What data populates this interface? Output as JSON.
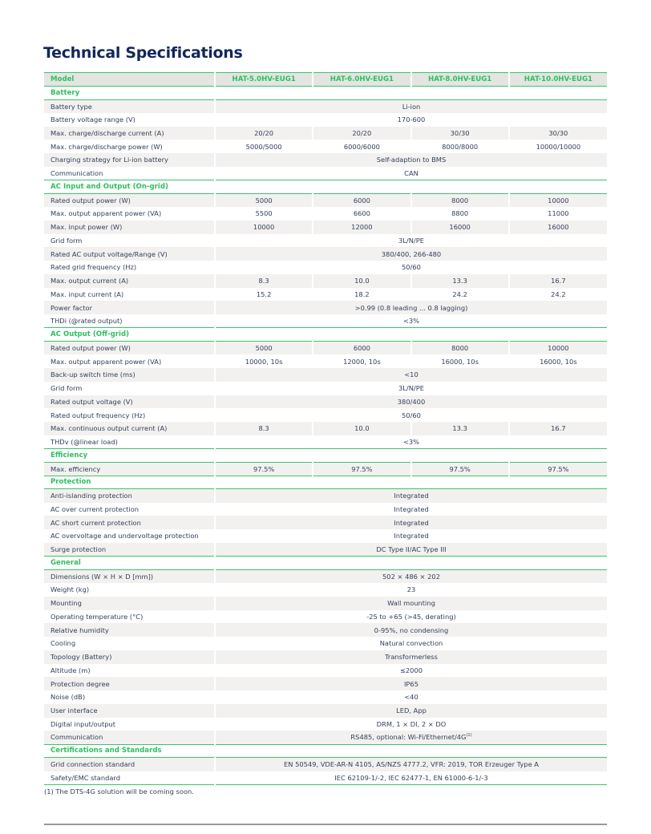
{
  "title": "Technical Specifications",
  "header": [
    "Model",
    "HAT-5.0HV-EUG1",
    "HAT-6.0HV-EUG1",
    "HAT-8.0HV-EUG1",
    "HAT-10.0HV-EUG1"
  ],
  "sections": [
    {
      "name": "Battery",
      "rows": [
        {
          "label": "Battery type",
          "value": "Li-ion"
        },
        {
          "label": "Battery voltage range (V)",
          "value": "170-600"
        },
        {
          "label": "Max. charge/discharge current (A)",
          "values": [
            "20/20",
            "20/20",
            "30/30",
            "30/30"
          ]
        },
        {
          "label": "Max. charge/discharge power (W)",
          "values": [
            "5000/5000",
            "6000/6000",
            "8000/8000",
            "10000/10000"
          ]
        },
        {
          "label": "Charging strategy for Li-ion battery",
          "value": "Self-adaption to BMS"
        },
        {
          "label": "Communication",
          "value": "CAN"
        }
      ]
    },
    {
      "name": "AC Input and Output (On-grid)",
      "rows": [
        {
          "label": "Rated output power (W)",
          "values": [
            "5000",
            "6000",
            "8000",
            "10000"
          ]
        },
        {
          "label": "Max. output apparent power (VA)",
          "values": [
            "5500",
            "6600",
            "8800",
            "11000"
          ]
        },
        {
          "label": "Max. input power (W)",
          "values": [
            "10000",
            "12000",
            "16000",
            "16000"
          ]
        },
        {
          "label": "Grid form",
          "value": "3L/N/PE"
        },
        {
          "label": "Rated AC output voltage/Range (V)",
          "value": "380/400, 266-480"
        },
        {
          "label": "Rated grid frequency (Hz)",
          "value": "50/60"
        },
        {
          "label": "Max. output current (A)",
          "values": [
            "8.3",
            "10.0",
            "13.3",
            "16.7"
          ]
        },
        {
          "label": "Max. input current (A)",
          "values": [
            "15.2",
            "18.2",
            "24.2",
            "24.2"
          ]
        },
        {
          "label": "Power factor",
          "value": ">0.99 (0.8 leading ... 0.8 lagging)"
        },
        {
          "label": "THDi (@rated output)",
          "value": "<3%"
        }
      ]
    },
    {
      "name": "AC Output (Off-grid)",
      "rows": [
        {
          "label": "Rated output power (W)",
          "values": [
            "5000",
            "6000",
            "8000",
            "10000"
          ]
        },
        {
          "label": "Max. output apparent power (VA)",
          "values": [
            "10000, 10s",
            "12000, 10s",
            "16000, 10s",
            "16000, 10s"
          ]
        },
        {
          "label": "Back-up switch time (ms)",
          "value": "<10"
        },
        {
          "label": "Grid form",
          "value": "3L/N/PE"
        },
        {
          "label": "Rated output voltage (V)",
          "value": "380/400"
        },
        {
          "label": "Rated output frequency (Hz)",
          "value": "50/60"
        },
        {
          "label": "Max. continuous output current (A)",
          "values": [
            "8.3",
            "10.0",
            "13.3",
            "16.7"
          ]
        },
        {
          "label": "THDv (@linear load)",
          "value": "<3%"
        }
      ]
    },
    {
      "name": "Efficiency",
      "rows": [
        {
          "label": "Max. efficiency",
          "values": [
            "97.5%",
            "97.5%",
            "97.5%",
            "97.5%"
          ]
        }
      ]
    },
    {
      "name": "Protection",
      "rows": [
        {
          "label": "Anti-islanding protection",
          "value": "Integrated"
        },
        {
          "label": "AC over current protection",
          "value": "Integrated"
        },
        {
          "label": "AC short current protection",
          "value": "Integrated"
        },
        {
          "label": "AC overvoltage and undervoltage protection",
          "value": "Integrated"
        },
        {
          "label": "Surge protection",
          "value": "DC Type II/AC Type III"
        }
      ]
    },
    {
      "name": "General",
      "rows": [
        {
          "label": "Dimensions (W × H × D [mm])",
          "value": "502 × 486 × 202"
        },
        {
          "label": "Weight (kg)",
          "value": "23"
        },
        {
          "label": "Mounting",
          "value": "Wall mounting"
        },
        {
          "label": "Operating temperature (°C)",
          "value": "-25 to +65 (>45, derating)"
        },
        {
          "label": "Relative humidity",
          "value": "0-95%, no condensing"
        },
        {
          "label": "Cooling",
          "value": "Natural convection"
        },
        {
          "label": "Topology (Battery)",
          "value": "Transformerless"
        },
        {
          "label": "Altitude (m)",
          "value": "≤2000"
        },
        {
          "label": "Protection degree",
          "value": "IP65"
        },
        {
          "label": "Noise (dB)",
          "value": "<40"
        },
        {
          "label": "User interface",
          "value": "LED, App"
        },
        {
          "label": "Digital input/output",
          "value": "DRM, 1 × DI, 2 × DO"
        },
        {
          "label": "Communication",
          "value": "RS485, optional: Wi-Fi/Ethernet/4G",
          "sup": "(1)"
        }
      ]
    },
    {
      "name": "Certifications and Standards",
      "rows": [
        {
          "label": "Grid connection standard",
          "value": "EN 50549, VDE-AR-N 4105, AS/NZS 4777.2, VFR: 2019, TOR Erzeuger Type A"
        },
        {
          "label": "Safety/EMC standard",
          "value": "IEC 62109-1/-2, IEC 62477-1, EN 61000-6-1/-3"
        }
      ]
    }
  ],
  "footnote": "(1) The DTS-4G solution will be coming soon.",
  "colors": {
    "accent": "#3cc36c",
    "title": "#12275a",
    "row_shade": "#f2f1ef"
  }
}
